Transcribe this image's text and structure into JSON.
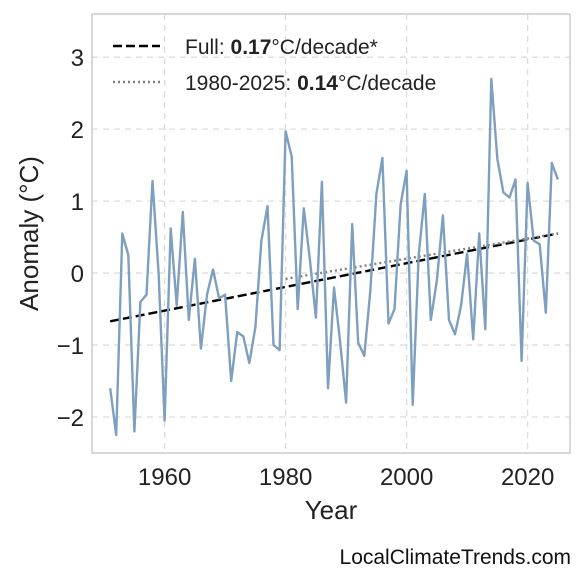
{
  "chart_data": {
    "type": "line",
    "xlabel": "Year",
    "ylabel": "Anomaly (°C)",
    "xlim": [
      1948,
      2027
    ],
    "ylim": [
      -2.5,
      3.6
    ],
    "xticks": [
      1960,
      1980,
      2000,
      2020
    ],
    "yticks": [
      -2,
      -1,
      0,
      1,
      2,
      3
    ],
    "ytick_labels": [
      "−2",
      "−1",
      "0",
      "1",
      "2",
      "3"
    ],
    "grid": true,
    "legend_placement": "top-left",
    "colors": {
      "series": "#7f9fbf",
      "full_trend": "#000000",
      "recent_trend": "#808080"
    },
    "series": [
      {
        "x": [
          1951,
          1952,
          1953,
          1954,
          1955,
          1956,
          1957,
          1958,
          1959,
          1960,
          1961,
          1962,
          1963,
          1964,
          1965,
          1966,
          1967,
          1968,
          1969,
          1970,
          1971,
          1972,
          1973,
          1974,
          1975,
          1976,
          1977,
          1978,
          1979,
          1980,
          1981,
          1982,
          1983,
          1984,
          1985,
          1986,
          1987,
          1988,
          1989,
          1990,
          1991,
          1992,
          1993,
          1994,
          1995,
          1996,
          1997,
          1998,
          1999,
          2000,
          2001,
          2002,
          2003,
          2004,
          2005,
          2006,
          2007,
          2008,
          2009,
          2010,
          2011,
          2012,
          2013,
          2014,
          2015,
          2016,
          2017,
          2018,
          2019,
          2020,
          2021,
          2022,
          2023,
          2024,
          2025
        ],
        "values": [
          -1.6,
          -2.25,
          0.55,
          0.25,
          -2.2,
          -0.4,
          -0.3,
          1.28,
          0.0,
          -2.05,
          0.62,
          -0.45,
          0.85,
          -0.65,
          0.2,
          -1.05,
          -0.3,
          0.05,
          -0.35,
          -0.3,
          -1.5,
          -0.82,
          -0.88,
          -1.25,
          -0.75,
          0.45,
          0.93,
          -1.0,
          -1.07,
          1.97,
          1.62,
          -0.5,
          0.9,
          0.2,
          -0.62,
          1.27,
          -1.6,
          -0.2,
          -0.95,
          -1.8,
          0.68,
          -0.97,
          -1.15,
          -0.25,
          1.1,
          1.6,
          -0.7,
          -0.5,
          0.95,
          1.42,
          -1.83,
          0.25,
          1.1,
          -0.65,
          -0.1,
          0.8,
          -0.65,
          -0.85,
          -0.45,
          0.27,
          -0.92,
          0.55,
          -0.78,
          2.7,
          1.58,
          1.12,
          1.05,
          1.3,
          -1.22,
          1.25,
          0.45,
          0.4,
          -0.55,
          1.53,
          1.3
        ]
      }
    ],
    "trends": [
      {
        "style": "dashed",
        "x": [
          1951,
          2025
        ],
        "values": [
          -0.67,
          0.55
        ]
      },
      {
        "style": "dotted",
        "x": [
          1980,
          2025
        ],
        "values": [
          -0.08,
          0.55
        ]
      }
    ],
    "legend": [
      {
        "prefix": "Full: ",
        "value": "0.17",
        "suffix": "°C/decade*"
      },
      {
        "prefix": "1980-2025: ",
        "value": "0.14",
        "suffix": "°C/decade"
      }
    ]
  },
  "watermark": "LocalClimateTrends.com"
}
